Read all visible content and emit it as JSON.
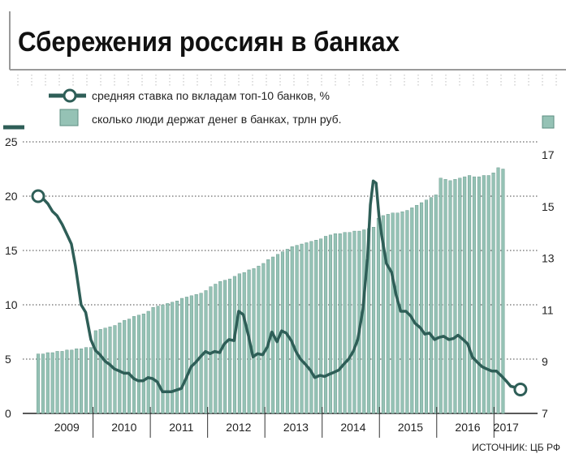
{
  "chart_data": {
    "title": "Сбережения россиян в банках",
    "source": "ИСТОЧНИК: ЦБ РФ",
    "type": "bar+line",
    "x_labels": [
      "2009",
      "2010",
      "2011",
      "2012",
      "2013",
      "2014",
      "2015",
      "2016",
      "2017"
    ],
    "legend": {
      "line": "средняя ставка по вкладам топ-10 банков, %",
      "bars": "сколько люди держат денег в банках, трлн руб."
    },
    "y_left": {
      "ticks": [
        0,
        5,
        10,
        15,
        20,
        25
      ],
      "range": [
        0,
        25
      ]
    },
    "y_right": {
      "ticks": [
        7,
        9,
        11,
        13,
        15,
        17
      ],
      "range": [
        7,
        17.5
      ]
    },
    "colors": {
      "line": "#2e5e57",
      "bar": "#95c2b5",
      "bar_edge": "#5e8f82",
      "grid": "#444444",
      "title_bar": "#9a9a9a"
    },
    "bars": [
      {
        "year": 2009,
        "values": [
          9.3,
          9.3,
          9.35,
          9.35,
          9.4,
          9.4,
          9.45,
          9.45,
          9.5,
          9.5,
          9.55,
          9.55
        ]
      },
      {
        "year": 2010,
        "values": [
          10.2,
          10.25,
          10.3,
          10.35,
          10.4,
          10.5,
          10.6,
          10.65,
          10.75,
          10.8,
          10.85,
          10.95
        ]
      },
      {
        "year": 2011,
        "values": [
          11.1,
          11.15,
          11.2,
          11.25,
          11.3,
          11.35,
          11.45,
          11.5,
          11.55,
          11.6,
          11.65,
          11.75
        ]
      },
      {
        "year": 2012,
        "values": [
          11.9,
          12.0,
          12.1,
          12.15,
          12.2,
          12.3,
          12.4,
          12.45,
          12.55,
          12.6,
          12.7,
          12.8
        ]
      },
      {
        "year": 2013,
        "values": [
          12.95,
          13.05,
          13.15,
          13.25,
          13.35,
          13.45,
          13.5,
          13.55,
          13.6,
          13.65,
          13.7,
          13.75
        ]
      },
      {
        "year": 2014,
        "values": [
          13.85,
          13.9,
          13.95,
          13.95,
          14.0,
          14.0,
          14.05,
          14.05,
          14.1,
          14.15,
          14.2,
          14.55
        ]
      },
      {
        "year": 2015,
        "values": [
          14.65,
          14.7,
          14.75,
          14.75,
          14.8,
          14.85,
          14.95,
          15.05,
          15.15,
          15.25,
          15.35,
          15.45
        ]
      },
      {
        "year": 2016,
        "values": [
          16.1,
          16.05,
          16.0,
          16.05,
          16.1,
          16.15,
          16.2,
          16.15,
          16.15,
          16.2,
          16.2,
          16.3
        ]
      },
      {
        "year": 2017,
        "values": [
          16.5,
          16.45
        ]
      }
    ],
    "rate": [
      [
        2009.0,
        20
      ],
      [
        2009.08,
        19.8
      ],
      [
        2009.17,
        19.3
      ],
      [
        2009.25,
        18.6
      ],
      [
        2009.33,
        18.2
      ],
      [
        2009.42,
        17.4
      ],
      [
        2009.5,
        16.5
      ],
      [
        2009.58,
        15.6
      ],
      [
        2009.65,
        13.6
      ],
      [
        2009.75,
        10
      ],
      [
        2009.83,
        9.3
      ],
      [
        2009.92,
        6.8
      ],
      [
        2010.0,
        5.8
      ],
      [
        2010.08,
        5.4
      ],
      [
        2010.17,
        4.8
      ],
      [
        2010.25,
        4.5
      ],
      [
        2010.33,
        4.1
      ],
      [
        2010.42,
        3.9
      ],
      [
        2010.5,
        3.7
      ],
      [
        2010.58,
        3.7
      ],
      [
        2010.67,
        3.2
      ],
      [
        2010.75,
        3.0
      ],
      [
        2010.83,
        3.0
      ],
      [
        2010.92,
        3.3
      ],
      [
        2011.0,
        3.2
      ],
      [
        2011.08,
        2.9
      ],
      [
        2011.17,
        2.0
      ],
      [
        2011.33,
        2.0
      ],
      [
        2011.5,
        2.3
      ],
      [
        2011.58,
        3.2
      ],
      [
        2011.67,
        4.3
      ],
      [
        2011.75,
        4.7
      ],
      [
        2011.83,
        5.2
      ],
      [
        2011.92,
        5.7
      ],
      [
        2012.0,
        5.5
      ],
      [
        2012.08,
        5.7
      ],
      [
        2012.17,
        5.6
      ],
      [
        2012.25,
        6.4
      ],
      [
        2012.33,
        6.8
      ],
      [
        2012.42,
        6.7
      ],
      [
        2012.5,
        9.4
      ],
      [
        2012.58,
        9.1
      ],
      [
        2012.67,
        7.2
      ],
      [
        2012.75,
        5.2
      ],
      [
        2012.83,
        5.5
      ],
      [
        2012.92,
        5.4
      ],
      [
        2013.0,
        6.1
      ],
      [
        2013.08,
        7.5
      ],
      [
        2013.17,
        6.6
      ],
      [
        2013.25,
        7.6
      ],
      [
        2013.33,
        7.4
      ],
      [
        2013.42,
        6.7
      ],
      [
        2013.5,
        5.7
      ],
      [
        2013.58,
        5.0
      ],
      [
        2013.67,
        4.5
      ],
      [
        2013.75,
        4.0
      ],
      [
        2013.83,
        3.3
      ],
      [
        2013.92,
        3.5
      ],
      [
        2014.0,
        3.4
      ],
      [
        2014.08,
        3.6
      ],
      [
        2014.17,
        3.8
      ],
      [
        2014.25,
        4.0
      ],
      [
        2014.33,
        4.5
      ],
      [
        2014.42,
        5.0
      ],
      [
        2014.5,
        5.7
      ],
      [
        2014.58,
        6.8
      ],
      [
        2014.67,
        9.6
      ],
      [
        2014.75,
        14.3
      ],
      [
        2014.8,
        19.2
      ],
      [
        2014.85,
        21.4
      ],
      [
        2014.9,
        21.2
      ],
      [
        2014.95,
        18.2
      ],
      [
        2015.0,
        16.3
      ],
      [
        2015.08,
        13.8
      ],
      [
        2015.17,
        13.0
      ],
      [
        2015.25,
        10.9
      ],
      [
        2015.33,
        9.4
      ],
      [
        2015.42,
        9.4
      ],
      [
        2015.5,
        9.0
      ],
      [
        2015.58,
        8.3
      ],
      [
        2015.67,
        7.9
      ],
      [
        2015.75,
        7.3
      ],
      [
        2015.83,
        7.4
      ],
      [
        2015.92,
        6.8
      ],
      [
        2016.0,
        7.0
      ],
      [
        2016.08,
        7.1
      ],
      [
        2016.17,
        6.8
      ],
      [
        2016.25,
        6.9
      ],
      [
        2016.33,
        7.2
      ],
      [
        2016.42,
        6.8
      ],
      [
        2016.5,
        6.4
      ],
      [
        2016.58,
        5.2
      ],
      [
        2016.67,
        4.7
      ],
      [
        2016.75,
        4.3
      ],
      [
        2016.83,
        4.1
      ],
      [
        2016.92,
        3.9
      ],
      [
        2017.0,
        3.9
      ],
      [
        2017.08,
        3.5
      ],
      [
        2017.17,
        3.0
      ],
      [
        2017.25,
        2.5
      ],
      [
        2017.33,
        2.4
      ],
      [
        2017.42,
        2.2
      ]
    ]
  }
}
